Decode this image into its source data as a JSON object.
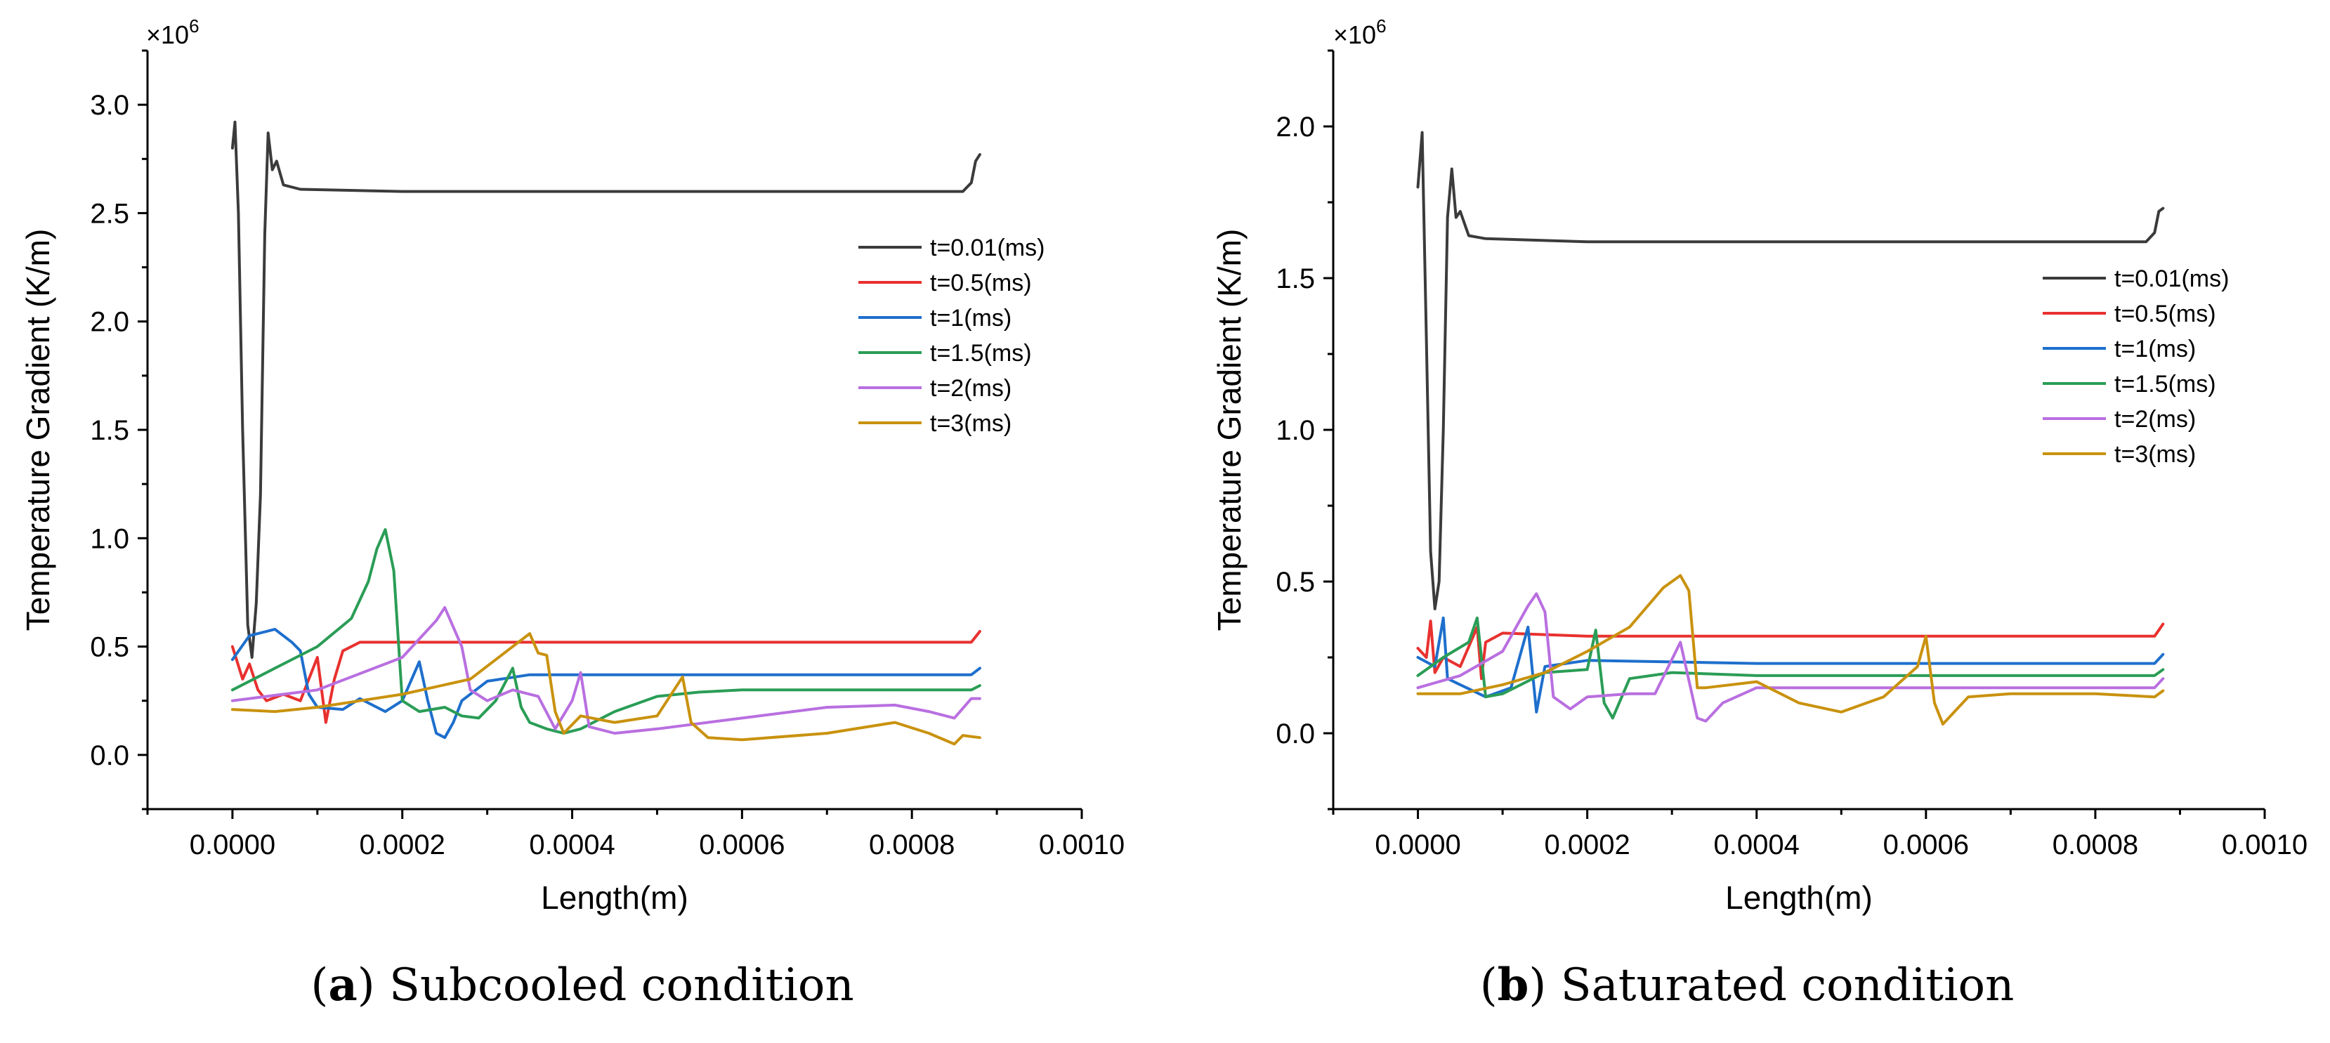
{
  "figure": {
    "panels": [
      {
        "caption_letter": "a",
        "caption_text": "Subcooled condition",
        "multiplier_base": "×10",
        "multiplier_exp": "6"
      },
      {
        "caption_letter": "b",
        "caption_text": "Saturated condition",
        "multiplier_base": "×10",
        "multiplier_exp": "6"
      }
    ]
  },
  "chart_data": [
    {
      "type": "line",
      "title": "Subcooled condition",
      "xlabel": "Length(m)",
      "ylabel": "Temperature Gradient (K/m)",
      "y_multiplier": "1e6",
      "xlim": [
        -0.0001,
        0.001
      ],
      "ylim": [
        -0.25,
        3.25
      ],
      "xticks": [
        0.0,
        0.0002,
        0.0004,
        0.0006,
        0.0008,
        0.001
      ],
      "xtick_labels": [
        "0.0000",
        "0.0002",
        "0.0004",
        "0.0006",
        "0.0008",
        "0.0010"
      ],
      "yticks": [
        0.0,
        0.5,
        1.0,
        1.5,
        2.0,
        2.5,
        3.0
      ],
      "ytick_labels": [
        "0.0",
        "0.5",
        "1.0",
        "1.5",
        "2.0",
        "2.5",
        "3.0"
      ],
      "legend_position": "top-right",
      "series": [
        {
          "name": "t=0.01(ms)",
          "color": "#3b3b3b",
          "x": [
            0,
            3e-06,
            7e-06,
            1.2e-05,
            1.8e-05,
            2.3e-05,
            2.8e-05,
            3.3e-05,
            3.8e-05,
            4.2e-05,
            4.7e-05,
            5.2e-05,
            6e-05,
            8e-05,
            0.0002,
            0.0004,
            0.0006,
            0.0008,
            0.00086,
            0.00087,
            0.000875,
            0.00088
          ],
          "y": [
            2.8,
            2.92,
            2.5,
            1.5,
            0.6,
            0.45,
            0.7,
            1.2,
            2.4,
            2.87,
            2.7,
            2.74,
            2.63,
            2.61,
            2.6,
            2.6,
            2.6,
            2.6,
            2.6,
            2.64,
            2.74,
            2.77
          ]
        },
        {
          "name": "t=0.5(ms)",
          "color": "#e8312f",
          "x": [
            0,
            1.2e-05,
            2e-05,
            3e-05,
            4e-05,
            6e-05,
            8e-05,
            0.0001,
            0.00011,
            0.00012,
            0.00013,
            0.00015,
            0.0002,
            0.0004,
            0.0006,
            0.0008,
            0.00087,
            0.00088
          ],
          "y": [
            0.5,
            0.35,
            0.42,
            0.3,
            0.25,
            0.28,
            0.25,
            0.45,
            0.15,
            0.35,
            0.48,
            0.52,
            0.52,
            0.52,
            0.52,
            0.52,
            0.52,
            0.57
          ]
        },
        {
          "name": "t=1(ms)",
          "color": "#1e6fcc",
          "x": [
            0,
            2e-05,
            5e-05,
            7e-05,
            8e-05,
            9e-05,
            0.0001,
            0.00013,
            0.00015,
            0.00018,
            0.0002,
            0.00022,
            0.00023,
            0.00024,
            0.00025,
            0.00026,
            0.00027,
            0.0003,
            0.00035,
            0.0004,
            0.0006,
            0.0008,
            0.00087,
            0.00088
          ],
          "y": [
            0.44,
            0.55,
            0.58,
            0.52,
            0.48,
            0.28,
            0.22,
            0.21,
            0.26,
            0.2,
            0.25,
            0.43,
            0.25,
            0.1,
            0.08,
            0.15,
            0.25,
            0.34,
            0.37,
            0.37,
            0.37,
            0.37,
            0.37,
            0.4
          ]
        },
        {
          "name": "t=1.5(ms)",
          "color": "#2a9d56",
          "x": [
            0,
            5e-05,
            0.0001,
            0.00014,
            0.00016,
            0.00017,
            0.00018,
            0.00019,
            0.0002,
            0.00022,
            0.00025,
            0.00027,
            0.00029,
            0.00031,
            0.00033,
            0.00034,
            0.00035,
            0.00037,
            0.00039,
            0.00041,
            0.00045,
            0.0005,
            0.00055,
            0.0006,
            0.0008,
            0.00087,
            0.00088
          ],
          "y": [
            0.3,
            0.4,
            0.5,
            0.63,
            0.8,
            0.95,
            1.04,
            0.85,
            0.25,
            0.2,
            0.22,
            0.18,
            0.17,
            0.25,
            0.4,
            0.22,
            0.15,
            0.12,
            0.1,
            0.12,
            0.2,
            0.27,
            0.29,
            0.3,
            0.3,
            0.3,
            0.32
          ]
        },
        {
          "name": "t=2(ms)",
          "color": "#b96fe0",
          "x": [
            0,
            0.0001,
            0.0002,
            0.00024,
            0.00025,
            0.00027,
            0.00028,
            0.0003,
            0.00033,
            0.00036,
            0.00038,
            0.0004,
            0.00041,
            0.00042,
            0.00045,
            0.0005,
            0.0006,
            0.0007,
            0.00078,
            0.00082,
            0.00085,
            0.00087,
            0.00088
          ],
          "y": [
            0.25,
            0.3,
            0.45,
            0.62,
            0.68,
            0.5,
            0.3,
            0.25,
            0.3,
            0.27,
            0.12,
            0.25,
            0.38,
            0.13,
            0.1,
            0.12,
            0.17,
            0.22,
            0.23,
            0.2,
            0.17,
            0.26,
            0.26
          ]
        },
        {
          "name": "t=3(ms)",
          "color": "#c9920e",
          "x": [
            0,
            5e-05,
            0.0001,
            0.0002,
            0.00028,
            0.00033,
            0.00035,
            0.00036,
            0.00037,
            0.00038,
            0.00039,
            0.00041,
            0.00045,
            0.0005,
            0.00053,
            0.00054,
            0.00056,
            0.0006,
            0.0007,
            0.00078,
            0.00082,
            0.00085,
            0.00086,
            0.00088
          ],
          "y": [
            0.21,
            0.2,
            0.22,
            0.28,
            0.35,
            0.5,
            0.56,
            0.47,
            0.46,
            0.2,
            0.1,
            0.18,
            0.15,
            0.18,
            0.36,
            0.15,
            0.08,
            0.07,
            0.1,
            0.15,
            0.1,
            0.05,
            0.09,
            0.08
          ]
        }
      ]
    },
    {
      "type": "line",
      "title": "Saturated condition",
      "xlabel": "Length(m)",
      "ylabel": "Temperature Gradient (K/m)",
      "y_multiplier": "1e6",
      "xlim": [
        -0.0001,
        0.001
      ],
      "ylim": [
        -0.25,
        2.25
      ],
      "xticks": [
        0.0,
        0.0002,
        0.0004,
        0.0006,
        0.0008,
        0.001
      ],
      "xtick_labels": [
        "0.0000",
        "0.0002",
        "0.0004",
        "0.0006",
        "0.0008",
        "0.0010"
      ],
      "yticks": [
        0.0,
        0.5,
        1.0,
        1.5,
        2.0
      ],
      "ytick_labels": [
        "0.0",
        "0.5",
        "1.0",
        "1.5",
        "2.0"
      ],
      "legend_position": "top-right",
      "series": [
        {
          "name": "t=0.01(ms)",
          "color": "#3b3b3b",
          "x": [
            0,
            5e-06,
            1e-05,
            1.5e-05,
            2e-05,
            2.5e-05,
            3e-05,
            3.5e-05,
            4e-05,
            4.5e-05,
            5e-05,
            6e-05,
            8e-05,
            0.0002,
            0.0004,
            0.0006,
            0.0008,
            0.00086,
            0.00087,
            0.000875,
            0.00088
          ],
          "y": [
            1.8,
            1.98,
            1.3,
            0.6,
            0.41,
            0.5,
            1.0,
            1.7,
            1.86,
            1.7,
            1.72,
            1.64,
            1.63,
            1.62,
            1.62,
            1.62,
            1.62,
            1.62,
            1.65,
            1.72,
            1.73
          ]
        },
        {
          "name": "t=0.5(ms)",
          "color": "#e8312f",
          "x": [
            0,
            1e-05,
            1.5e-05,
            2e-05,
            3e-05,
            5e-05,
            7e-05,
            7.5e-05,
            8e-05,
            0.0001,
            0.0002,
            0.0004,
            0.0006,
            0.0008,
            0.00087,
            0.00088
          ],
          "y": [
            0.28,
            0.25,
            0.37,
            0.2,
            0.25,
            0.22,
            0.35,
            0.18,
            0.3,
            0.33,
            0.32,
            0.32,
            0.32,
            0.32,
            0.32,
            0.36
          ]
        },
        {
          "name": "t=1(ms)",
          "color": "#1e6fcc",
          "x": [
            0,
            2e-05,
            3e-05,
            3.5e-05,
            5e-05,
            8e-05,
            0.00011,
            0.00013,
            0.00014,
            0.00015,
            0.0002,
            0.0004,
            0.0006,
            0.0008,
            0.00087,
            0.00088
          ],
          "y": [
            0.25,
            0.22,
            0.38,
            0.18,
            0.16,
            0.12,
            0.15,
            0.35,
            0.07,
            0.22,
            0.24,
            0.23,
            0.23,
            0.23,
            0.23,
            0.26
          ]
        },
        {
          "name": "t=1.5(ms)",
          "color": "#2a9d56",
          "x": [
            0,
            3e-05,
            6e-05,
            7e-05,
            8e-05,
            0.0001,
            0.00015,
            0.0002,
            0.00021,
            0.00022,
            0.00023,
            0.00025,
            0.0003,
            0.0004,
            0.0006,
            0.0008,
            0.00087,
            0.00088
          ],
          "y": [
            0.19,
            0.25,
            0.3,
            0.38,
            0.12,
            0.13,
            0.2,
            0.21,
            0.34,
            0.1,
            0.05,
            0.18,
            0.2,
            0.19,
            0.19,
            0.19,
            0.19,
            0.21
          ]
        },
        {
          "name": "t=2(ms)",
          "color": "#b96fe0",
          "x": [
            0,
            5e-05,
            0.0001,
            0.00013,
            0.00014,
            0.00015,
            0.00016,
            0.00018,
            0.0002,
            0.00025,
            0.00028,
            0.00031,
            0.00033,
            0.00034,
            0.00036,
            0.0004,
            0.0006,
            0.0008,
            0.00087,
            0.00088
          ],
          "y": [
            0.15,
            0.19,
            0.27,
            0.42,
            0.46,
            0.4,
            0.12,
            0.08,
            0.12,
            0.13,
            0.13,
            0.3,
            0.05,
            0.04,
            0.1,
            0.15,
            0.15,
            0.15,
            0.15,
            0.18
          ]
        },
        {
          "name": "t=3(ms)",
          "color": "#c9920e",
          "x": [
            0,
            5e-05,
            0.0001,
            0.00015,
            0.0002,
            0.00025,
            0.00029,
            0.00031,
            0.00032,
            0.00033,
            0.00034,
            0.0004,
            0.00045,
            0.0005,
            0.00055,
            0.00059,
            0.0006,
            0.00061,
            0.00062,
            0.00065,
            0.0007,
            0.0008,
            0.00087,
            0.00088
          ],
          "y": [
            0.13,
            0.13,
            0.16,
            0.2,
            0.27,
            0.35,
            0.48,
            0.52,
            0.47,
            0.15,
            0.15,
            0.17,
            0.1,
            0.07,
            0.12,
            0.22,
            0.32,
            0.1,
            0.03,
            0.12,
            0.13,
            0.13,
            0.12,
            0.14
          ]
        }
      ]
    }
  ]
}
